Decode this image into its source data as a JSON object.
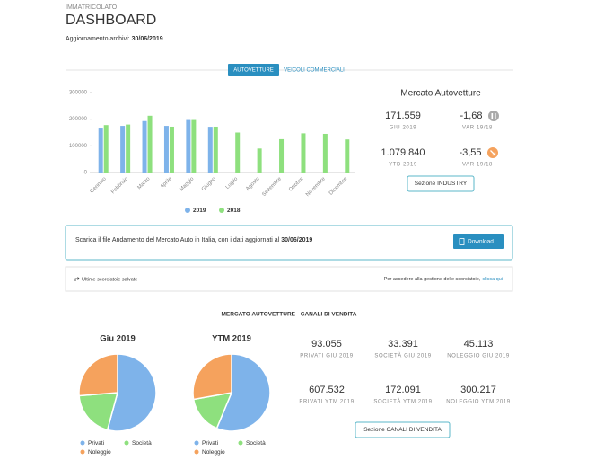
{
  "header": {
    "section": "IMMATRICOLATO",
    "title": "DASHBOARD",
    "updated_label": "Aggiornamento archivi:",
    "updated_date": "30/06/2019"
  },
  "tabs": [
    "AUTOVETTURE",
    "VEICOLI COMMERCIALI"
  ],
  "chart_data": [
    {
      "type": "bar",
      "categories": [
        "Gennaio",
        "Febbraio",
        "Marzo",
        "Aprile",
        "Maggio",
        "Giugno",
        "Luglio",
        "Agosto",
        "Settembre",
        "Ottobre",
        "Novembre",
        "Dicembre"
      ],
      "series": [
        {
          "name": "2019",
          "color": "#7eb3ea",
          "values": [
            165000,
            175000,
            193000,
            175000,
            197000,
            171559,
            null,
            null,
            null,
            null,
            null,
            null
          ]
        },
        {
          "name": "2018",
          "color": "#8ee07e",
          "values": [
            178000,
            180000,
            213000,
            172000,
            197000,
            172000,
            150000,
            90000,
            125000,
            147000,
            145000,
            124000
          ]
        }
      ],
      "ylim": [
        0,
        300000
      ],
      "yticks": [
        0,
        100000,
        200000,
        300000
      ]
    },
    {
      "type": "pie",
      "title": "Giu 2019",
      "categories": [
        "Privati",
        "Società",
        "Noleggio"
      ],
      "values": [
        93055,
        33391,
        45113
      ],
      "colors": [
        "#7eb3ea",
        "#8ee07e",
        "#f5a25d"
      ]
    },
    {
      "type": "pie",
      "title": "YTM 2019",
      "categories": [
        "Privati",
        "Società",
        "Noleggio"
      ],
      "values": [
        607532,
        172091,
        300217
      ],
      "colors": [
        "#7eb3ea",
        "#8ee07e",
        "#f5a25d"
      ]
    }
  ],
  "market": {
    "title": "Mercato Autovetture",
    "items": [
      {
        "value": "171.559",
        "label": "GIU 2019"
      },
      {
        "value": "-1,68",
        "label": "VAR 19/18"
      },
      {
        "value": "1.079.840",
        "label": "YTD 2019"
      },
      {
        "value": "-3,55",
        "label": "VAR 19/18"
      }
    ],
    "button": "Sezione INDUSTRY"
  },
  "download": {
    "text": "Scarica il file Andamento del Mercato Auto in Italia, con i dati aggiornati al",
    "date": "30/06/2019",
    "button": "Download"
  },
  "shortcuts": {
    "label": "Ultime scorciatoie salvate",
    "hint": "Per accedere alla gestione delle scorciatoie,",
    "link": "clicca qui"
  },
  "channels": {
    "title": "MERCATO AUTOVETTURE - CANALI DI VENDITA",
    "items": [
      {
        "value": "93.055",
        "label": "PRIVATI GIU 2019"
      },
      {
        "value": "33.391",
        "label": "SOCIETÀ GIU 2019"
      },
      {
        "value": "45.113",
        "label": "NOLEGGIO GIU 2019"
      },
      {
        "value": "607.532",
        "label": "PRIVATI YTM 2019"
      },
      {
        "value": "172.091",
        "label": "SOCIETÀ YTM 2019"
      },
      {
        "value": "300.217",
        "label": "NOLEGGIO YTM 2019"
      }
    ],
    "button": "Sezione CANALI DI VENDITA"
  }
}
